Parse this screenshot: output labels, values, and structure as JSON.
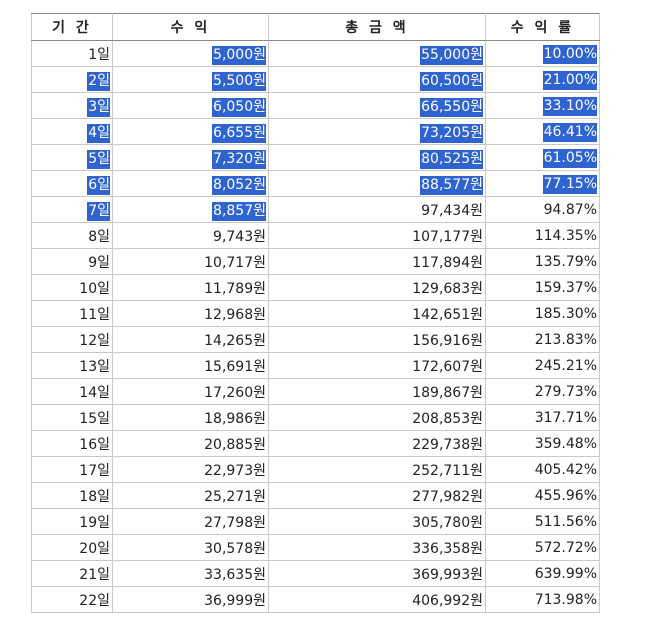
{
  "table": {
    "headers": [
      "기 간",
      "수 익",
      "총 금 액",
      "수 익 률"
    ],
    "rows": [
      {
        "period": "1일",
        "profit": "5,000원",
        "total": "55,000원",
        "rate": "10.00%",
        "sel": [
          false,
          true,
          true,
          true
        ]
      },
      {
        "period": "2일",
        "profit": "5,500원",
        "total": "60,500원",
        "rate": "21.00%",
        "sel": [
          true,
          true,
          true,
          true
        ]
      },
      {
        "period": "3일",
        "profit": "6,050원",
        "total": "66,550원",
        "rate": "33.10%",
        "sel": [
          true,
          true,
          true,
          true
        ]
      },
      {
        "period": "4일",
        "profit": "6,655원",
        "total": "73,205원",
        "rate": "46.41%",
        "sel": [
          true,
          true,
          true,
          true
        ]
      },
      {
        "period": "5일",
        "profit": "7,320원",
        "total": "80,525원",
        "rate": "61.05%",
        "sel": [
          true,
          true,
          true,
          true
        ]
      },
      {
        "period": "6일",
        "profit": "8,052원",
        "total": "88,577원",
        "rate": "77.15%",
        "sel": [
          true,
          true,
          true,
          true
        ]
      },
      {
        "period": "7일",
        "profit": "8,857원",
        "total": "97,434원",
        "rate": "94.87%",
        "sel": [
          true,
          true,
          false,
          false
        ]
      },
      {
        "period": "8일",
        "profit": "9,743원",
        "total": "107,177원",
        "rate": "114.35%",
        "sel": [
          false,
          false,
          false,
          false
        ]
      },
      {
        "period": "9일",
        "profit": "10,717원",
        "total": "117,894원",
        "rate": "135.79%",
        "sel": [
          false,
          false,
          false,
          false
        ]
      },
      {
        "period": "10일",
        "profit": "11,789원",
        "total": "129,683원",
        "rate": "159.37%",
        "sel": [
          false,
          false,
          false,
          false
        ]
      },
      {
        "period": "11일",
        "profit": "12,968원",
        "total": "142,651원",
        "rate": "185.30%",
        "sel": [
          false,
          false,
          false,
          false
        ]
      },
      {
        "period": "12일",
        "profit": "14,265원",
        "total": "156,916원",
        "rate": "213.83%",
        "sel": [
          false,
          false,
          false,
          false
        ]
      },
      {
        "period": "13일",
        "profit": "15,691원",
        "total": "172,607원",
        "rate": "245.21%",
        "sel": [
          false,
          false,
          false,
          false
        ]
      },
      {
        "period": "14일",
        "profit": "17,260원",
        "total": "189,867원",
        "rate": "279.73%",
        "sel": [
          false,
          false,
          false,
          false
        ]
      },
      {
        "period": "15일",
        "profit": "18,986원",
        "total": "208,853원",
        "rate": "317.71%",
        "sel": [
          false,
          false,
          false,
          false
        ]
      },
      {
        "period": "16일",
        "profit": "20,885원",
        "total": "229,738원",
        "rate": "359.48%",
        "sel": [
          false,
          false,
          false,
          false
        ]
      },
      {
        "period": "17일",
        "profit": "22,973원",
        "total": "252,711원",
        "rate": "405.42%",
        "sel": [
          false,
          false,
          false,
          false
        ]
      },
      {
        "period": "18일",
        "profit": "25,271원",
        "total": "277,982원",
        "rate": "455.96%",
        "sel": [
          false,
          false,
          false,
          false
        ]
      },
      {
        "period": "19일",
        "profit": "27,798원",
        "total": "305,780원",
        "rate": "511.56%",
        "sel": [
          false,
          false,
          false,
          false
        ]
      },
      {
        "period": "20일",
        "profit": "30,578원",
        "total": "336,358원",
        "rate": "572.72%",
        "sel": [
          false,
          false,
          false,
          false
        ]
      },
      {
        "period": "21일",
        "profit": "33,635원",
        "total": "369,993원",
        "rate": "639.99%",
        "sel": [
          false,
          false,
          false,
          false
        ]
      },
      {
        "period": "22일",
        "profit": "36,999원",
        "total": "406,992원",
        "rate": "713.98%",
        "sel": [
          false,
          false,
          false,
          false
        ]
      }
    ]
  },
  "colors": {
    "selection": "#2f63cf",
    "selection_text": "#ffffff",
    "border": "#c9c9c9"
  }
}
